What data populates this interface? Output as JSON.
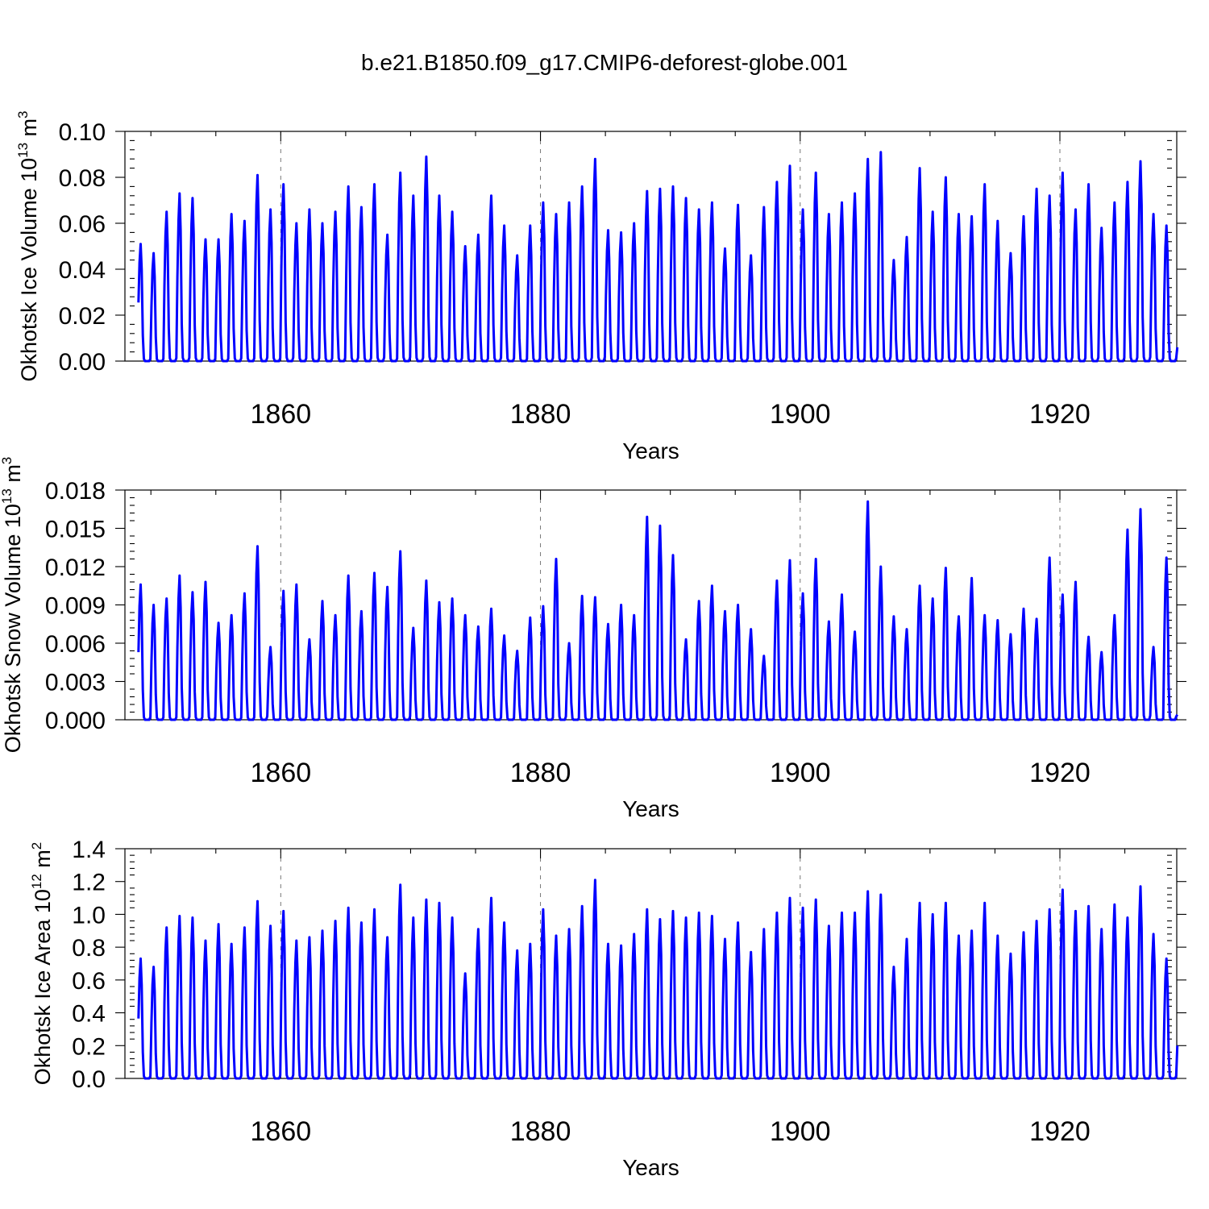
{
  "title": "b.e21.B1850.f09_g17.CMIP6-deforest-globe.001",
  "colors": {
    "line": "#0000ff",
    "axis": "#000000",
    "grid": "#777777"
  },
  "chart_data": [
    {
      "type": "line",
      "ylabel": "Okhotsk Ice Volume 10",
      "ylabel_sup": "13",
      "ylabel_unit": " m",
      "ylabel_unit_sup": "3",
      "xlabel": "Years",
      "xlim": [
        1848,
        1929
      ],
      "ylim": [
        0,
        0.1
      ],
      "xticks": [
        1860,
        1880,
        1900,
        1920
      ],
      "xtick_labels": [
        "1860",
        "1880",
        "1900",
        "1920"
      ],
      "yticks": [
        0,
        0.02,
        0.04,
        0.06,
        0.08,
        0.1
      ],
      "ytick_labels": [
        "0.00",
        "0.02",
        "0.04",
        "0.06",
        "0.08",
        "0.10"
      ],
      "grid": "dashed vertical at x ticks",
      "start_year": 1849,
      "series": [
        {
          "name": "Okhotsk Ice Volume",
          "annual_max": [
            0.051,
            0.047,
            0.065,
            0.073,
            0.071,
            0.053,
            0.053,
            0.064,
            0.061,
            0.081,
            0.066,
            0.077,
            0.06,
            0.066,
            0.06,
            0.065,
            0.076,
            0.067,
            0.077,
            0.055,
            0.082,
            0.072,
            0.089,
            0.072,
            0.065,
            0.05,
            0.055,
            0.072,
            0.059,
            0.046,
            0.059,
            0.069,
            0.064,
            0.069,
            0.076,
            0.088,
            0.057,
            0.056,
            0.06,
            0.074,
            0.075,
            0.076,
            0.071,
            0.066,
            0.069,
            0.049,
            0.068,
            0.046,
            0.067,
            0.078,
            0.085,
            0.066,
            0.082,
            0.064,
            0.069,
            0.073,
            0.088,
            0.091,
            0.044,
            0.054,
            0.084,
            0.065,
            0.08,
            0.064,
            0.063,
            0.077,
            0.061,
            0.047,
            0.063,
            0.075,
            0.072,
            0.082,
            0.066,
            0.077,
            0.058,
            0.069,
            0.078,
            0.087,
            0.064,
            0.059
          ],
          "end_value": 0.006
        }
      ]
    },
    {
      "type": "line",
      "ylabel": "Okhotsk Snow Volume 10",
      "ylabel_sup": "13",
      "ylabel_unit": " m",
      "ylabel_unit_sup": "3",
      "xlabel": "Years",
      "xlim": [
        1848,
        1929
      ],
      "ylim": [
        0,
        0.018
      ],
      "xticks": [
        1860,
        1880,
        1900,
        1920
      ],
      "xtick_labels": [
        "1860",
        "1880",
        "1900",
        "1920"
      ],
      "yticks": [
        0,
        0.003,
        0.006,
        0.009,
        0.012,
        0.015,
        0.018
      ],
      "ytick_labels": [
        "0.000",
        "0.003",
        "0.006",
        "0.009",
        "0.012",
        "0.015",
        "0.018"
      ],
      "grid": "dashed vertical at x ticks",
      "start_year": 1849,
      "series": [
        {
          "name": "Okhotsk Snow Volume",
          "annual_max": [
            0.0106,
            0.009,
            0.0095,
            0.0113,
            0.01,
            0.0108,
            0.0076,
            0.0082,
            0.0099,
            0.0136,
            0.0057,
            0.0101,
            0.0106,
            0.0063,
            0.0093,
            0.0082,
            0.0113,
            0.0085,
            0.0115,
            0.0104,
            0.0132,
            0.0072,
            0.0109,
            0.0092,
            0.0095,
            0.0082,
            0.0073,
            0.0087,
            0.0066,
            0.0054,
            0.008,
            0.0089,
            0.0126,
            0.006,
            0.0097,
            0.0096,
            0.0075,
            0.009,
            0.0082,
            0.0159,
            0.0152,
            0.0129,
            0.0063,
            0.0093,
            0.0105,
            0.0085,
            0.009,
            0.0071,
            0.005,
            0.0109,
            0.0125,
            0.0099,
            0.0126,
            0.0077,
            0.0098,
            0.0069,
            0.0171,
            0.012,
            0.0081,
            0.0071,
            0.0105,
            0.0095,
            0.0119,
            0.0081,
            0.0111,
            0.0082,
            0.0078,
            0.0067,
            0.0087,
            0.0079,
            0.0127,
            0.0098,
            0.0108,
            0.0065,
            0.0053,
            0.0082,
            0.0149,
            0.0165,
            0.0057,
            0.0127
          ],
          "end_value": 0.0004
        }
      ]
    },
    {
      "type": "line",
      "ylabel": "Okhotsk Ice Area 10",
      "ylabel_sup": "12",
      "ylabel_unit": " m",
      "ylabel_unit_sup": "2",
      "xlabel": "Years",
      "xlim": [
        1848,
        1929
      ],
      "ylim": [
        0,
        1.4
      ],
      "xticks": [
        1860,
        1880,
        1900,
        1920
      ],
      "xtick_labels": [
        "1860",
        "1880",
        "1900",
        "1920"
      ],
      "yticks": [
        0,
        0.2,
        0.4,
        0.6,
        0.8,
        1.0,
        1.2,
        1.4
      ],
      "ytick_labels": [
        "0.0",
        "0.2",
        "0.4",
        "0.6",
        "0.8",
        "1.0",
        "1.2",
        "1.4"
      ],
      "grid": "dashed vertical at x ticks",
      "start_year": 1849,
      "series": [
        {
          "name": "Okhotsk Ice Area",
          "annual_max": [
            0.73,
            0.68,
            0.92,
            0.99,
            0.98,
            0.84,
            0.94,
            0.82,
            0.92,
            1.08,
            0.93,
            1.02,
            0.84,
            0.86,
            0.9,
            0.96,
            1.04,
            0.95,
            1.03,
            0.86,
            1.18,
            0.98,
            1.09,
            1.07,
            0.98,
            0.64,
            0.91,
            1.1,
            0.95,
            0.78,
            0.82,
            1.03,
            0.87,
            0.91,
            1.05,
            1.21,
            0.82,
            0.81,
            0.88,
            1.03,
            0.97,
            1.02,
            0.98,
            1.01,
            0.99,
            0.85,
            0.95,
            0.77,
            0.91,
            1.01,
            1.1,
            1.04,
            1.09,
            0.93,
            1.01,
            1.01,
            1.14,
            1.12,
            0.68,
            0.85,
            1.07,
            1.0,
            1.07,
            0.87,
            0.9,
            1.07,
            0.87,
            0.76,
            0.89,
            0.96,
            1.03,
            1.15,
            1.02,
            1.05,
            0.91,
            1.06,
            0.98,
            1.17,
            0.88,
            0.73
          ],
          "end_value": 0.2
        }
      ]
    }
  ]
}
